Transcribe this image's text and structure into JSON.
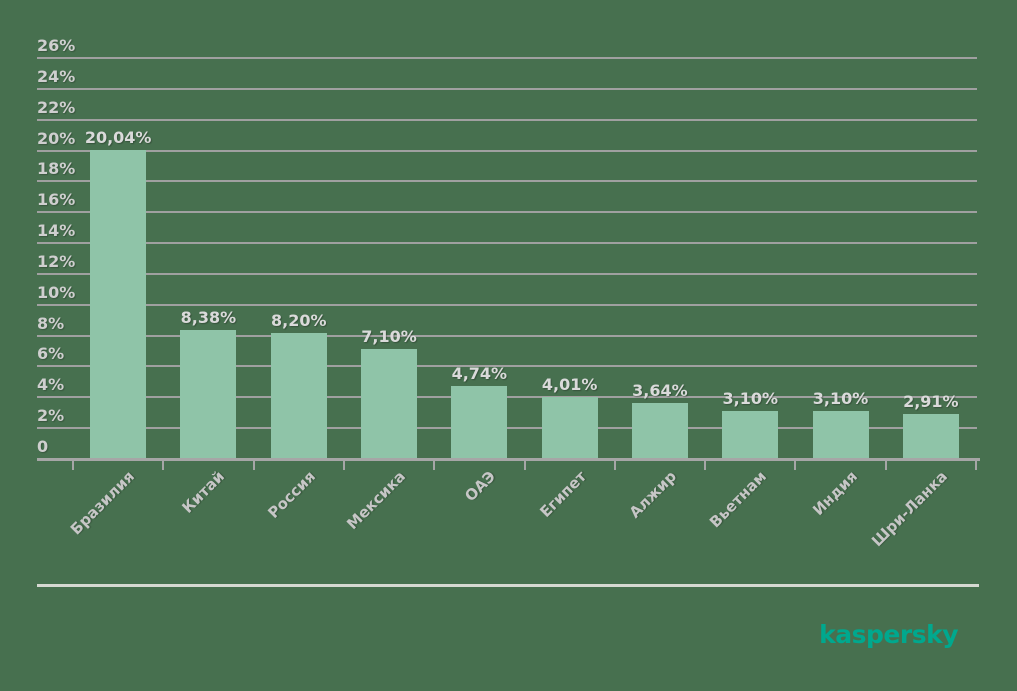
{
  "chart_data": {
    "type": "bar",
    "title": "",
    "xlabel": "",
    "ylabel": "",
    "categories": [
      "Бразилия",
      "Китай",
      "Россия",
      "Мексика",
      "ОАЭ",
      "Египет",
      "Алжир",
      "Вьетнам",
      "Индия",
      "Шри-Ланка"
    ],
    "values": [
      20.04,
      8.38,
      8.2,
      7.1,
      4.74,
      4.01,
      3.64,
      3.1,
      3.1,
      2.91
    ],
    "value_labels": [
      "20,04%",
      "8,38%",
      "8,20%",
      "7,10%",
      "4,74%",
      "4,01%",
      "3,64%",
      "3,10%",
      "3,10%",
      "2,91%"
    ],
    "y_ticks": [
      "0",
      "2%",
      "4%",
      "6%",
      "8%",
      "10%",
      "12%",
      "14%",
      "16%",
      "18%",
      "20%",
      "22%",
      "24%",
      "26%"
    ],
    "ylim": [
      0,
      26
    ],
    "grid": true,
    "legend": false,
    "colors": {
      "background": "#47704f",
      "bar_fill": "#8fc4a8",
      "gridline": "#a0a0a0",
      "axis_line": "#a6a6a6",
      "y_tick_text": "#cfcfcf",
      "x_tick_text": "#c6c6c6",
      "value_label_text": "#dadada"
    }
  },
  "footer": {
    "separator_color": "#d6d9d2",
    "logo_text": "kaspersky",
    "logo_color": "#00a88e"
  }
}
